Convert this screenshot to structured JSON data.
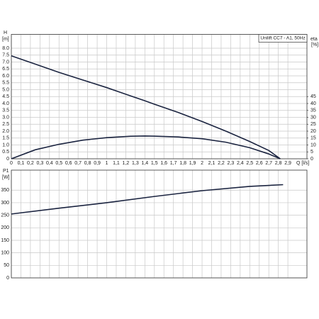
{
  "chart_data": [
    {
      "type": "line",
      "y_label": "H",
      "y_unit": "[m]",
      "y2_label": "eta",
      "y2_unit": "[%]",
      "x_label": "Q [l/s]",
      "legend_text": "Unilift CC7 - A1, 50Hz",
      "xlim": [
        0,
        3.1
      ],
      "xticks": [
        0,
        {
          "value": 0.1,
          "label": "0,1"
        },
        {
          "value": 0.2,
          "label": "0,2"
        },
        {
          "value": 0.3,
          "label": "0,3"
        },
        {
          "value": 0.4,
          "label": "0,4"
        },
        {
          "value": 0.5,
          "label": "0,5"
        },
        {
          "value": 0.6,
          "label": "0,6"
        },
        {
          "value": 0.7,
          "label": "0,7"
        },
        {
          "value": 0.8,
          "label": "0,8"
        },
        {
          "value": 0.9,
          "label": "0,9"
        },
        1,
        {
          "value": 1.1,
          "label": "1,1"
        },
        {
          "value": 1.2,
          "label": "1,2"
        },
        {
          "value": 1.3,
          "label": "1,3"
        },
        {
          "value": 1.4,
          "label": "1,4"
        },
        {
          "value": 1.5,
          "label": "1,5"
        },
        {
          "value": 1.6,
          "label": "1,6"
        },
        {
          "value": 1.7,
          "label": "1,7"
        },
        {
          "value": 1.8,
          "label": "1,8"
        },
        {
          "value": 1.9,
          "label": "1,9"
        },
        2,
        {
          "value": 2.1,
          "label": "2,1"
        },
        {
          "value": 2.2,
          "label": "2,2"
        },
        {
          "value": 2.3,
          "label": "2,3"
        },
        {
          "value": 2.4,
          "label": "2,4"
        },
        {
          "value": 2.5,
          "label": "2,5"
        },
        {
          "value": 2.6,
          "label": "2,6"
        },
        {
          "value": 2.7,
          "label": "2,7"
        },
        {
          "value": 2.8,
          "label": "2,8"
        },
        {
          "value": 2.9,
          "label": "2,9"
        }
      ],
      "ylim": [
        0,
        9
      ],
      "yticks": [
        0,
        0.5,
        {
          "value": 1,
          "label": "1.0"
        },
        1.5,
        {
          "value": 2,
          "label": "2.0"
        },
        2.5,
        {
          "value": 3,
          "label": "3.0"
        },
        3.5,
        {
          "value": 4,
          "label": "4.0"
        },
        4.5,
        {
          "value": 5,
          "label": "5.0"
        },
        5.5,
        {
          "value": 6,
          "label": "6.0"
        },
        6.5,
        {
          "value": 7,
          "label": "7.0"
        },
        7.5,
        {
          "value": 8,
          "label": "8.0"
        }
      ],
      "y2lim": [
        0,
        90
      ],
      "y2ticks": [
        0,
        5,
        10,
        15,
        20,
        25,
        30,
        35,
        40,
        45
      ],
      "grid": true,
      "x": [
        0,
        0.25,
        0.5,
        0.75,
        1.0,
        1.25,
        1.4,
        1.5,
        1.75,
        2.0,
        2.25,
        2.5,
        2.7,
        2.82
      ],
      "series": [
        {
          "color": "#1b2440",
          "values": [
            7.45,
            6.85,
            6.25,
            5.7,
            5.15,
            4.55,
            4.2,
            3.95,
            3.35,
            2.7,
            2.0,
            1.25,
            0.6,
            0
          ]
        },
        {
          "color": "#1b2440",
          "axis": "y2",
          "values": [
            0,
            6.5,
            10.5,
            13.5,
            15.3,
            16.3,
            16.5,
            16.4,
            15.8,
            14.5,
            12,
            8,
            3.5,
            0
          ]
        }
      ]
    },
    {
      "type": "line",
      "y_label": "P1",
      "y_unit": "[W]",
      "xlim": [
        0,
        3.1
      ],
      "xticks": [
        0,
        0.1,
        0.2,
        0.3,
        0.4,
        0.5,
        0.6,
        0.7,
        0.8,
        0.9,
        1,
        1.1,
        1.2,
        1.3,
        1.4,
        1.5,
        1.6,
        1.7,
        1.8,
        1.9,
        2,
        2.1,
        2.2,
        2.3,
        2.4,
        2.5,
        2.6,
        2.7,
        2.8,
        2.9
      ],
      "ylim": [
        0,
        430
      ],
      "yticks": [
        0,
        50,
        100,
        150,
        200,
        250,
        300,
        350
      ],
      "grid": true,
      "x": [
        0,
        0.5,
        1.0,
        1.5,
        2.0,
        2.5,
        2.85
      ],
      "series": [
        {
          "color": "#1b2440",
          "values": [
            255,
            278,
            300,
            325,
            348,
            365,
            372
          ]
        }
      ]
    }
  ]
}
